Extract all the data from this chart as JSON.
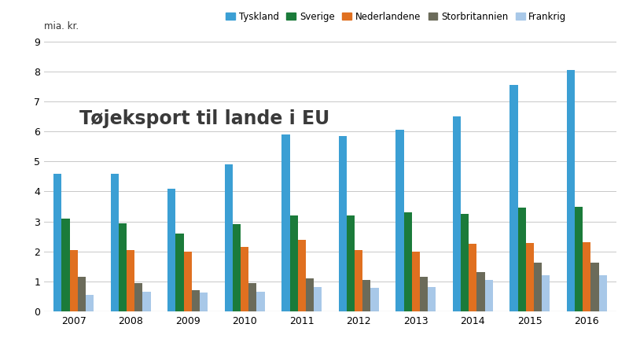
{
  "title": "Tøjeksport til lande i EU",
  "ylabel": "mia. kr.",
  "years": [
    2007,
    2008,
    2009,
    2010,
    2011,
    2012,
    2013,
    2014,
    2015,
    2016
  ],
  "series": {
    "Tyskland": [
      4.6,
      4.6,
      4.1,
      4.9,
      5.9,
      5.85,
      6.05,
      6.5,
      7.55,
      8.05
    ],
    "Sverige": [
      3.1,
      2.95,
      2.6,
      2.9,
      3.2,
      3.2,
      3.3,
      3.25,
      3.45,
      3.5
    ],
    "Nederlandene": [
      2.05,
      2.05,
      1.98,
      2.15,
      2.38,
      2.05,
      2.0,
      2.25,
      2.28,
      2.3
    ],
    "Storbritannien": [
      1.15,
      0.95,
      0.72,
      0.95,
      1.1,
      1.05,
      1.15,
      1.3,
      1.62,
      1.62
    ],
    "Frankrig": [
      0.55,
      0.65,
      0.62,
      0.65,
      0.82,
      0.78,
      0.82,
      1.05,
      1.2,
      1.2
    ]
  },
  "colors": {
    "Tyskland": "#3B9FD4",
    "Sverige": "#1B7B3A",
    "Nederlandene": "#E07020",
    "Storbritannien": "#6B6B5A",
    "Frankrig": "#A8C8E8"
  },
  "ylim": [
    0,
    9
  ],
  "yticks": [
    0,
    1,
    2,
    3,
    4,
    5,
    6,
    7,
    8,
    9
  ],
  "background_color": "#FFFFFF",
  "grid_color": "#C8C8C8",
  "title_color": "#3A3A3A",
  "title_fontsize": 17,
  "legend_fontsize": 8.5,
  "tick_fontsize": 9,
  "border_color": "#5BB8D4"
}
